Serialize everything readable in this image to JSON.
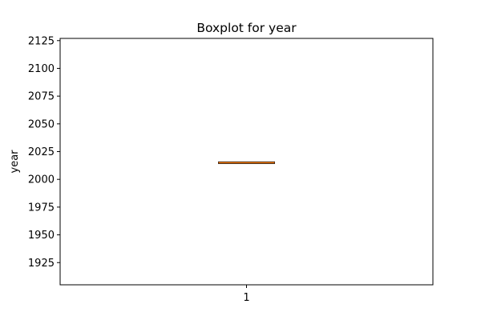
{
  "chart_data": {
    "type": "boxplot",
    "title": "Boxplot for year",
    "xlabel": "",
    "ylabel": "year",
    "categories": [
      "1"
    ],
    "series": [
      {
        "min": 2015,
        "q1": 2015,
        "median": 2015,
        "q3": 2015,
        "max": 2015
      }
    ],
    "ylim": [
      1905,
      2127
    ],
    "yticks": [
      1925,
      1950,
      1975,
      2000,
      2025,
      2050,
      2075,
      2100,
      2125
    ],
    "grid": false,
    "legend": "none"
  },
  "colors": {
    "box": "#000000",
    "median": "#ff7f0e"
  }
}
